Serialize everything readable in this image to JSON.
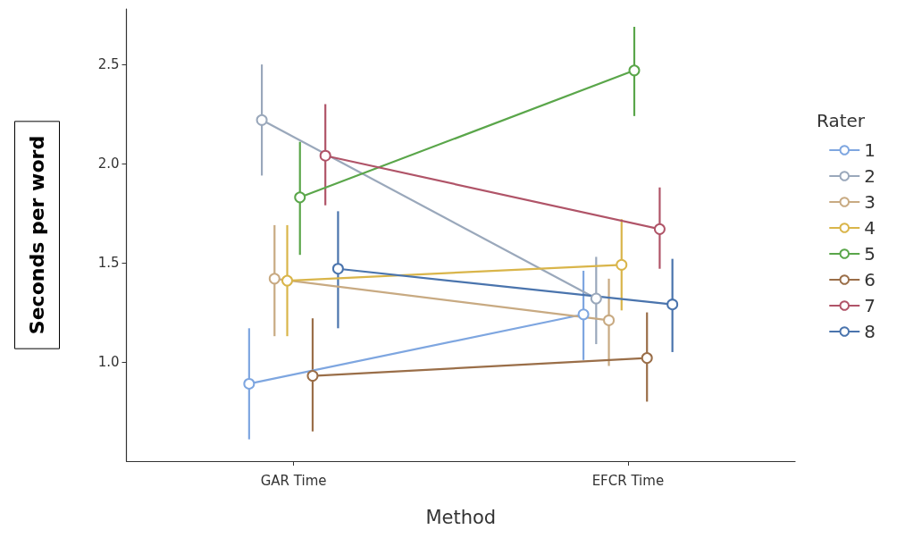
{
  "chart_data": {
    "type": "line",
    "xlabel": "Method",
    "ylabel": "Seconds per word",
    "legend_title": "Rater",
    "categories": [
      "GAR Time",
      "EFCR Time"
    ],
    "ylim": [
      0.5,
      2.78
    ],
    "yticks": [
      {
        "value": 1,
        "label": "1.0"
      },
      {
        "value": 1.5,
        "label": "1.5"
      },
      {
        "value": 2,
        "label": "2.0"
      },
      {
        "value": 2.5,
        "label": "2.5"
      }
    ],
    "grid": false,
    "legend": "right",
    "marker": "circle",
    "line_style": "solid",
    "series": [
      {
        "name": "1",
        "color": "#7ea6e0",
        "values": [
          0.89,
          1.24
        ],
        "errors": [
          [
            0.61,
            1.17
          ],
          [
            1.01,
            1.46
          ]
        ]
      },
      {
        "name": "2",
        "color": "#9aa8bb",
        "values": [
          2.22,
          1.32
        ],
        "errors": [
          [
            1.94,
            2.5
          ],
          [
            1.09,
            1.53
          ]
        ]
      },
      {
        "name": "3",
        "color": "#c8aa82",
        "values": [
          1.42,
          1.21
        ],
        "errors": [
          [
            1.13,
            1.69
          ],
          [
            0.98,
            1.42
          ]
        ]
      },
      {
        "name": "4",
        "color": "#d9b54a",
        "values": [
          1.41,
          1.49
        ],
        "errors": [
          [
            1.13,
            1.69
          ],
          [
            1.26,
            1.72
          ]
        ]
      },
      {
        "name": "5",
        "color": "#5aa64a",
        "values": [
          1.83,
          2.47
        ],
        "errors": [
          [
            1.54,
            2.11
          ],
          [
            2.24,
            2.69
          ]
        ]
      },
      {
        "name": "6",
        "color": "#9a6e48",
        "values": [
          0.93,
          1.02
        ],
        "errors": [
          [
            0.65,
            1.22
          ],
          [
            0.8,
            1.25
          ]
        ]
      },
      {
        "name": "7",
        "color": "#b05468",
        "values": [
          2.04,
          1.67
        ],
        "errors": [
          [
            1.79,
            2.3
          ],
          [
            1.47,
            1.88
          ]
        ]
      },
      {
        "name": "8",
        "color": "#4a74ad",
        "values": [
          1.47,
          1.29
        ],
        "errors": [
          [
            1.17,
            1.76
          ],
          [
            1.05,
            1.52
          ]
        ]
      }
    ]
  }
}
